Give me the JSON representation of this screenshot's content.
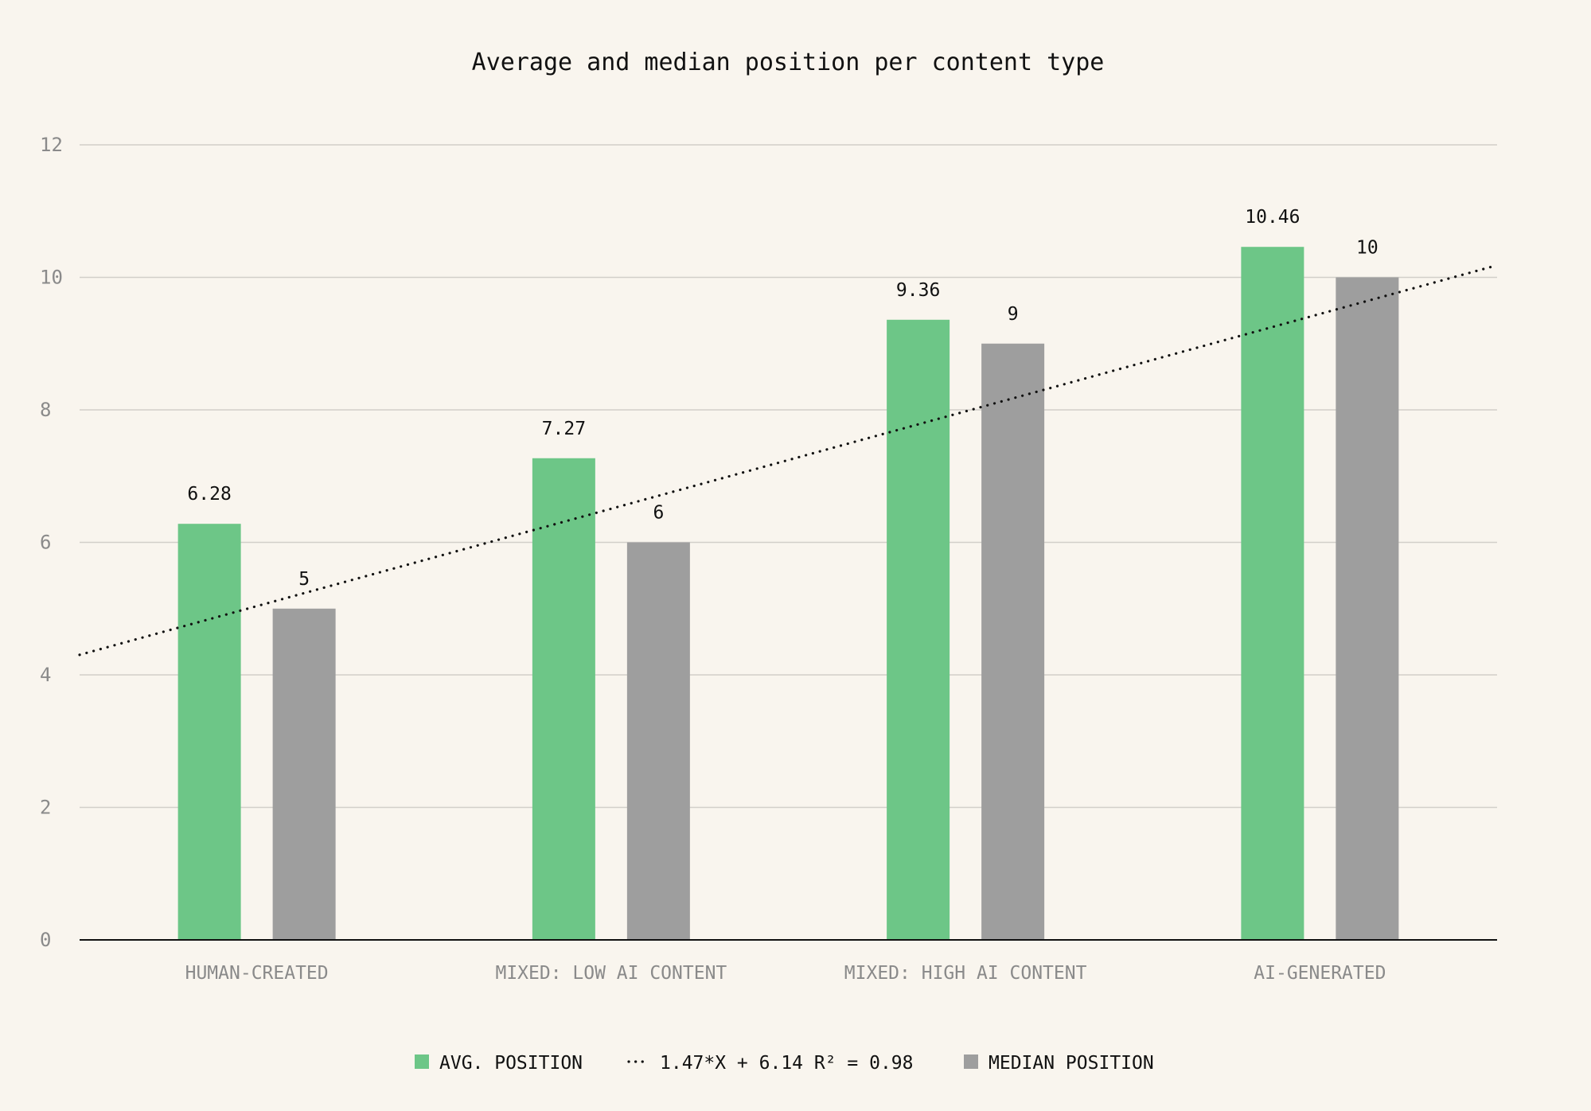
{
  "colors": {
    "background": "#f9f5ee",
    "avg": "#6dc687",
    "median": "#9e9e9e",
    "grid": "#d2cfc9",
    "axis": "#111111",
    "trend": "#111111"
  },
  "chart_data": {
    "type": "bar",
    "title": "Average and median position per content type",
    "xlabel": "",
    "ylabel": "",
    "ylim": [
      0,
      12
    ],
    "yticks": [
      0,
      2,
      4,
      6,
      8,
      10,
      12
    ],
    "categories": [
      "HUMAN-CREATED",
      "MIXED: LOW AI CONTENT",
      "MIXED: HIGH AI CONTENT",
      "AI-GENERATED"
    ],
    "series": [
      {
        "name": "AVG. POSITION",
        "values": [
          6.28,
          7.27,
          9.36,
          10.46
        ],
        "labels": [
          "6.28",
          "7.27",
          "9.36",
          "10.46"
        ]
      },
      {
        "name": "MEDIAN POSITION",
        "values": [
          5,
          6,
          9,
          10
        ],
        "labels": [
          "5",
          "6",
          "9",
          "10"
        ]
      }
    ],
    "trendline": {
      "label": "1.47*X + 6.14 R² = 0.98",
      "slope": 1.47,
      "intercept": 6.14,
      "style": "dotted"
    },
    "legend": {
      "placement": "bottom",
      "items": [
        "AVG. POSITION",
        "1.47*X + 6.14 R² = 0.98",
        "MEDIAN POSITION"
      ]
    },
    "grid": true
  }
}
